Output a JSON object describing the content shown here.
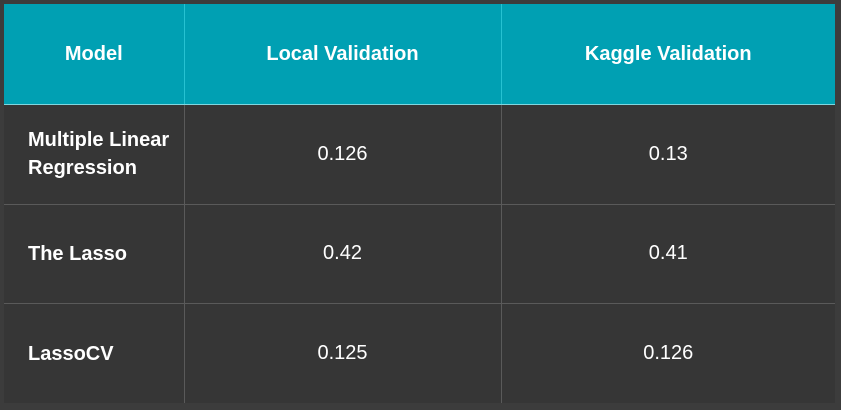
{
  "table": {
    "headers": [
      "Model",
      "Local Validation",
      "Kaggle Validation"
    ],
    "rows": [
      {
        "model": "Multiple Linear Regression",
        "local": "0.126",
        "kaggle": "0.13"
      },
      {
        "model": "The Lasso",
        "local": "0.42",
        "kaggle": "0.41"
      },
      {
        "model": "LassoCV",
        "local": "0.125",
        "kaggle": "0.126"
      }
    ]
  },
  "colors": {
    "header_bg": "#00a0b3",
    "body_bg": "#363636",
    "page_bg": "#3c3c3c",
    "text": "#ffffff"
  }
}
